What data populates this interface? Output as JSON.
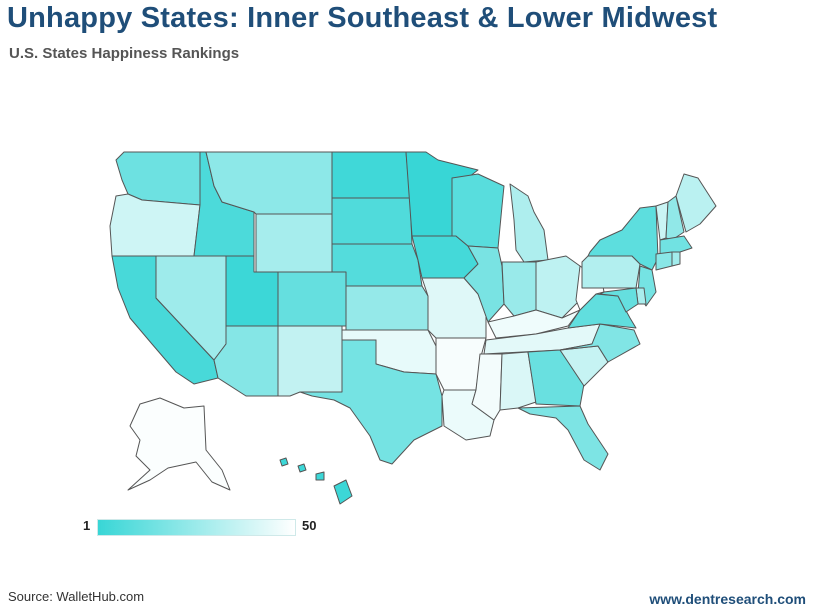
{
  "title": "Unhappy States: Inner Southeast & Lower Midwest",
  "subtitle": "U.S. States Happiness Rankings",
  "legend": {
    "min_label": "1",
    "max_label": "50",
    "color_best": "#38d6d6",
    "color_worst": "#ffffff"
  },
  "source": "Source: WalletHub.com",
  "site": "www.dentresearch.com",
  "chart_data": {
    "type": "choropleth",
    "metric": "happiness rank",
    "scale": "1 (dark teal) to 50 (white)",
    "states": [
      {
        "abbr": "WA",
        "rank": 14
      },
      {
        "abbr": "OR",
        "rank": 38
      },
      {
        "abbr": "CA",
        "rank": 5
      },
      {
        "abbr": "NV",
        "rank": 26
      },
      {
        "abbr": "ID",
        "rank": 6
      },
      {
        "abbr": "MT",
        "rank": 22
      },
      {
        "abbr": "WY",
        "rank": 28
      },
      {
        "abbr": "UT",
        "rank": 2
      },
      {
        "abbr": "AZ",
        "rank": 20
      },
      {
        "abbr": "CO",
        "rank": 12
      },
      {
        "abbr": "NM",
        "rank": 35
      },
      {
        "abbr": "ND",
        "rank": 3
      },
      {
        "abbr": "SD",
        "rank": 7
      },
      {
        "abbr": "NE",
        "rank": 8
      },
      {
        "abbr": "KS",
        "rank": 24
      },
      {
        "abbr": "OK",
        "rank": 44
      },
      {
        "abbr": "TX",
        "rank": 16
      },
      {
        "abbr": "MN",
        "rank": 1
      },
      {
        "abbr": "IA",
        "rank": 4
      },
      {
        "abbr": "MO",
        "rank": 42
      },
      {
        "abbr": "AR",
        "rank": 48
      },
      {
        "abbr": "LA",
        "rank": 45
      },
      {
        "abbr": "WI",
        "rank": 9
      },
      {
        "abbr": "IL",
        "rank": 17
      },
      {
        "abbr": "MI",
        "rank": 30
      },
      {
        "abbr": "IN",
        "rank": 25
      },
      {
        "abbr": "OH",
        "rank": 34
      },
      {
        "abbr": "KY",
        "rank": 46
      },
      {
        "abbr": "TN",
        "rank": 43
      },
      {
        "abbr": "MS",
        "rank": 47
      },
      {
        "abbr": "AL",
        "rank": 41
      },
      {
        "abbr": "GA",
        "rank": 13
      },
      {
        "abbr": "FL",
        "rank": 18
      },
      {
        "abbr": "SC",
        "rank": 36
      },
      {
        "abbr": "NC",
        "rank": 19
      },
      {
        "abbr": "VA",
        "rank": 11
      },
      {
        "abbr": "WV",
        "rank": 50
      },
      {
        "abbr": "PA",
        "rank": 31
      },
      {
        "abbr": "NY",
        "rank": 10
      },
      {
        "abbr": "VT",
        "rank": 37
      },
      {
        "abbr": "NH",
        "rank": 23
      },
      {
        "abbr": "ME",
        "rank": 33
      },
      {
        "abbr": "MA",
        "rank": 15
      },
      {
        "abbr": "CT",
        "rank": 21
      },
      {
        "abbr": "RI",
        "rank": 27
      },
      {
        "abbr": "NJ",
        "rank": 16
      },
      {
        "abbr": "DE",
        "rank": 29
      },
      {
        "abbr": "MD",
        "rank": 12
      },
      {
        "abbr": "AK",
        "rank": 49
      },
      {
        "abbr": "HI",
        "rank": 2
      }
    ]
  }
}
